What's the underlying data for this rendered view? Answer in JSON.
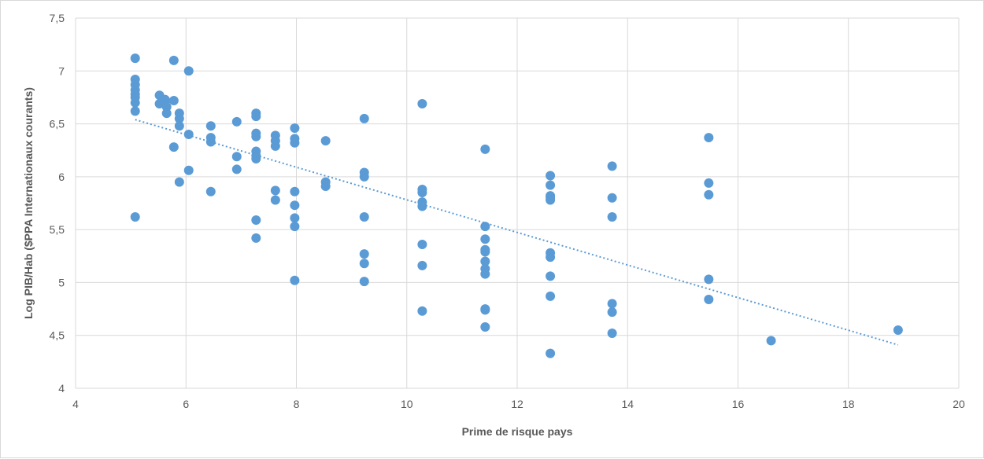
{
  "chart_data": {
    "type": "scatter",
    "title": "",
    "xlabel": "Prime de risque pays",
    "ylabel": "Log PIB/Hab ($PPA Internationaux courants)",
    "xlim": [
      4,
      20
    ],
    "ylim": [
      4,
      7.5
    ],
    "x_ticks": [
      4,
      6,
      8,
      10,
      12,
      14,
      16,
      18,
      20
    ],
    "x_tick_labels": [
      "4",
      "6",
      "8",
      "10",
      "12",
      "14",
      "16",
      "18",
      "20"
    ],
    "y_ticks": [
      4,
      4.5,
      5,
      5.5,
      6,
      6.5,
      7,
      7.5
    ],
    "y_tick_labels": [
      "4",
      "4,5",
      "5",
      "5,5",
      "6",
      "6,5",
      "7",
      "7,5"
    ],
    "grid": true,
    "legend": "none",
    "marker_color": "#5b9bd5",
    "trendline": {
      "type": "linear",
      "style": "dotted",
      "color": "#5b9bd5",
      "x_start": 5.08,
      "y_start": 6.54,
      "x_end": 18.9,
      "y_end": 4.41
    },
    "points": [
      [
        5.08,
        7.12
      ],
      [
        5.08,
        6.92
      ],
      [
        5.08,
        6.87
      ],
      [
        5.08,
        6.82
      ],
      [
        5.08,
        6.78
      ],
      [
        5.08,
        6.75
      ],
      [
        5.08,
        6.7
      ],
      [
        5.08,
        6.62
      ],
      [
        5.08,
        5.62
      ],
      [
        5.52,
        6.77
      ],
      [
        5.52,
        6.69
      ],
      [
        5.62,
        6.73
      ],
      [
        5.62,
        6.7
      ],
      [
        5.65,
        6.66
      ],
      [
        5.65,
        6.6
      ],
      [
        5.78,
        7.1
      ],
      [
        5.78,
        6.72
      ],
      [
        5.78,
        6.28
      ],
      [
        5.88,
        6.6
      ],
      [
        5.88,
        6.55
      ],
      [
        5.88,
        6.48
      ],
      [
        5.88,
        5.95
      ],
      [
        6.05,
        7.0
      ],
      [
        6.05,
        6.4
      ],
      [
        6.05,
        6.06
      ],
      [
        6.45,
        6.48
      ],
      [
        6.45,
        6.37
      ],
      [
        6.45,
        6.33
      ],
      [
        6.45,
        5.86
      ],
      [
        6.92,
        6.52
      ],
      [
        6.92,
        6.19
      ],
      [
        6.92,
        6.07
      ],
      [
        7.27,
        6.6
      ],
      [
        7.27,
        6.57
      ],
      [
        7.27,
        6.41
      ],
      [
        7.27,
        6.38
      ],
      [
        7.27,
        6.24
      ],
      [
        7.27,
        6.2
      ],
      [
        7.27,
        6.17
      ],
      [
        7.27,
        5.59
      ],
      [
        7.27,
        5.42
      ],
      [
        7.62,
        6.39
      ],
      [
        7.62,
        6.34
      ],
      [
        7.62,
        6.29
      ],
      [
        7.62,
        5.87
      ],
      [
        7.62,
        5.78
      ],
      [
        7.97,
        6.46
      ],
      [
        7.97,
        6.36
      ],
      [
        7.97,
        6.32
      ],
      [
        7.97,
        5.86
      ],
      [
        7.97,
        5.73
      ],
      [
        7.97,
        5.61
      ],
      [
        7.97,
        5.53
      ],
      [
        7.97,
        5.02
      ],
      [
        8.53,
        6.34
      ],
      [
        8.53,
        5.95
      ],
      [
        8.53,
        5.91
      ],
      [
        9.23,
        6.55
      ],
      [
        9.23,
        6.04
      ],
      [
        9.23,
        6.0
      ],
      [
        9.23,
        5.62
      ],
      [
        9.23,
        5.27
      ],
      [
        9.23,
        5.18
      ],
      [
        9.23,
        5.01
      ],
      [
        10.28,
        6.69
      ],
      [
        10.28,
        5.88
      ],
      [
        10.28,
        5.85
      ],
      [
        10.28,
        5.76
      ],
      [
        10.28,
        5.72
      ],
      [
        10.28,
        5.36
      ],
      [
        10.28,
        5.16
      ],
      [
        10.28,
        4.73
      ],
      [
        11.42,
        6.26
      ],
      [
        11.42,
        5.53
      ],
      [
        11.42,
        5.41
      ],
      [
        11.42,
        5.31
      ],
      [
        11.42,
        5.29
      ],
      [
        11.42,
        5.2
      ],
      [
        11.42,
        5.13
      ],
      [
        11.42,
        5.08
      ],
      [
        11.42,
        4.75
      ],
      [
        11.42,
        4.74
      ],
      [
        11.42,
        4.58
      ],
      [
        12.6,
        6.01
      ],
      [
        12.6,
        5.92
      ],
      [
        12.6,
        5.82
      ],
      [
        12.6,
        5.8
      ],
      [
        12.6,
        5.78
      ],
      [
        12.6,
        5.28
      ],
      [
        12.6,
        5.24
      ],
      [
        12.6,
        5.06
      ],
      [
        12.6,
        4.87
      ],
      [
        12.6,
        4.33
      ],
      [
        13.72,
        6.1
      ],
      [
        13.72,
        5.8
      ],
      [
        13.72,
        5.62
      ],
      [
        13.72,
        4.8
      ],
      [
        13.72,
        4.72
      ],
      [
        13.72,
        4.52
      ],
      [
        15.47,
        6.37
      ],
      [
        15.47,
        5.94
      ],
      [
        15.47,
        5.83
      ],
      [
        15.47,
        5.03
      ],
      [
        15.47,
        4.84
      ],
      [
        16.6,
        4.45
      ],
      [
        18.9,
        4.55
      ]
    ]
  }
}
